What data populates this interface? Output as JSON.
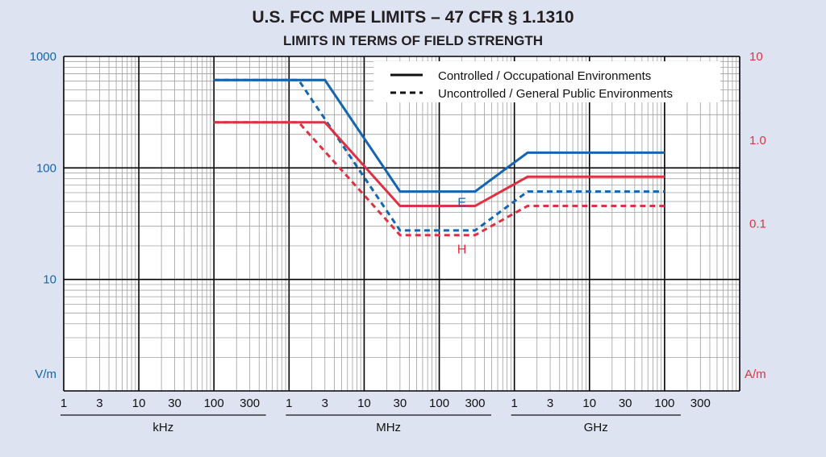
{
  "chart_data": {
    "type": "line",
    "title": "U.S. FCC MPE LIMITS – 47 CFR § 1.1310",
    "subtitle": "LIMITS IN TERMS OF FIELD STRENGTH",
    "x_scale": "log",
    "x_range_hz": [
      1000,
      1000000000000
    ],
    "x_tick_labels": [
      "1",
      "3",
      "10",
      "30",
      "100",
      "300",
      "1",
      "3",
      "10",
      "30",
      "100",
      "300",
      "1",
      "3",
      "10",
      "30",
      "100",
      "300"
    ],
    "x_tick_values_hz": [
      1000,
      3000,
      10000,
      30000,
      100000,
      300000,
      1000000,
      3000000,
      10000000,
      30000000,
      100000000,
      300000000,
      1000000000,
      3000000000,
      10000000000,
      30000000000,
      100000000000,
      300000000000
    ],
    "x_groups": [
      {
        "label": "kHz",
        "from_hz": 1000,
        "to_hz": 300000
      },
      {
        "label": "MHz",
        "from_hz": 1000000,
        "to_hz": 300000000
      },
      {
        "label": "GHz",
        "from_hz": 1000000000,
        "to_hz": 100000000000
      }
    ],
    "y_scale": "log",
    "y_left": {
      "unit": "V/m",
      "range": [
        1,
        1000
      ],
      "tick_labels": [
        "1000",
        "100",
        "10"
      ],
      "color": "#1565b0"
    },
    "y_right": {
      "unit": "A/m",
      "range": [
        0.001,
        10
      ],
      "tick_labels": [
        "10",
        "1.0",
        "0.1"
      ],
      "color": "#e03142"
    },
    "legend": {
      "position": "top-right",
      "entries": [
        {
          "label": "Controlled / Occupational Environments",
          "style": "solid"
        },
        {
          "label": "Uncontrolled / General Public Environments",
          "style": "dashed"
        }
      ]
    },
    "annotations": [
      {
        "text": "E",
        "x_hz": 200000000,
        "y": 45,
        "axis": "left",
        "color": "#1565b0"
      },
      {
        "text": "H",
        "x_hz": 200000000,
        "y": 0.044,
        "axis": "right",
        "color": "#e03142"
      }
    ],
    "series": [
      {
        "field": "E",
        "environment": "controlled",
        "axis": "left",
        "color": "#1565b0",
        "style": "solid",
        "x_hz": [
          100000,
          3000000,
          30000000,
          300000000,
          1500000000,
          100000000000
        ],
        "y": [
          614,
          614,
          61.4,
          61.4,
          137,
          137
        ]
      },
      {
        "field": "E",
        "environment": "uncontrolled",
        "axis": "left",
        "color": "#1565b0",
        "style": "dashed",
        "x_hz": [
          100000,
          1340000,
          30000000,
          300000000,
          1500000000,
          100000000000
        ],
        "y": [
          614,
          614,
          27.5,
          27.5,
          61.4,
          61.4
        ]
      },
      {
        "field": "H",
        "environment": "controlled",
        "axis": "right",
        "color": "#e03142",
        "style": "solid",
        "x_hz": [
          100000,
          3000000,
          30000000,
          300000000,
          1500000000,
          100000000000
        ],
        "y": [
          1.63,
          1.63,
          0.163,
          0.163,
          0.364,
          0.364
        ]
      },
      {
        "field": "H",
        "environment": "uncontrolled",
        "axis": "right",
        "color": "#e03142",
        "style": "dashed",
        "x_hz": [
          100000,
          1340000,
          30000000,
          300000000,
          1500000000,
          100000000000
        ],
        "y": [
          1.63,
          1.63,
          0.073,
          0.073,
          0.163,
          0.163
        ]
      }
    ]
  }
}
